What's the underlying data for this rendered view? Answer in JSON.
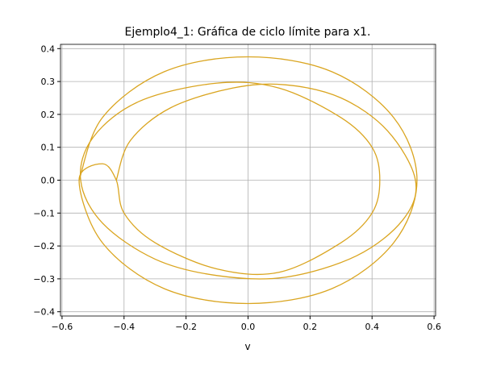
{
  "chart_data": {
    "type": "line",
    "title": "Ejemplo4_1: Gráfica de ciclo límite para x1.",
    "xlabel": "v",
    "xlim": [
      -0.605,
      0.605
    ],
    "ylim": [
      -0.413,
      0.413
    ],
    "xticks": [
      {
        "value": -0.6,
        "label": "−0.6"
      },
      {
        "value": -0.4,
        "label": "−0.4"
      },
      {
        "value": -0.2,
        "label": "−0.2"
      },
      {
        "value": 0,
        "label": "0.0"
      },
      0.2,
      0.4,
      0.6
    ],
    "yticks": [
      {
        "value": -0.4,
        "label": "−0.4"
      },
      {
        "value": -0.3,
        "label": "−0.3"
      },
      {
        "value": -0.2,
        "label": "−0.2"
      },
      {
        "value": -0.1,
        "label": "−0.1"
      },
      {
        "value": 0,
        "label": "0.0"
      },
      0.1,
      0.2,
      0.3,
      0.4
    ],
    "grid": true,
    "series": [
      {
        "color": "#daa520",
        "x": [
          -0.425,
          -0.38,
          -0.25,
          -0.05,
          0.12,
          0.3,
          0.45,
          0.54,
          0.5,
          0.35,
          0.12,
          -0.1,
          -0.3,
          -0.47,
          -0.54,
          -0.5,
          -0.35,
          -0.1,
          0.1,
          0.3,
          0.4,
          0.425,
          0.4,
          0.3,
          0.1,
          -0.1,
          -0.3,
          -0.4,
          -0.425,
          -0.47,
          -0.545,
          -0.47,
          -0.27,
          0,
          0.27,
          0.47,
          0.545,
          0.47,
          0.27,
          0,
          -0.27,
          -0.47,
          -0.545
        ],
        "y": [
          0,
          0.12,
          0.22,
          0.28,
          0.29,
          0.25,
          0.15,
          0,
          -0.12,
          -0.23,
          -0.295,
          -0.29,
          -0.24,
          -0.13,
          0,
          0.13,
          0.24,
          0.295,
          0.28,
          0.19,
          0.1,
          0,
          -0.1,
          -0.19,
          -0.28,
          -0.27,
          -0.19,
          -0.1,
          0,
          0.05,
          0,
          -0.19,
          -0.33,
          -0.375,
          -0.33,
          -0.19,
          0,
          0.19,
          0.33,
          0.375,
          0.33,
          0.19,
          0
        ]
      }
    ]
  }
}
